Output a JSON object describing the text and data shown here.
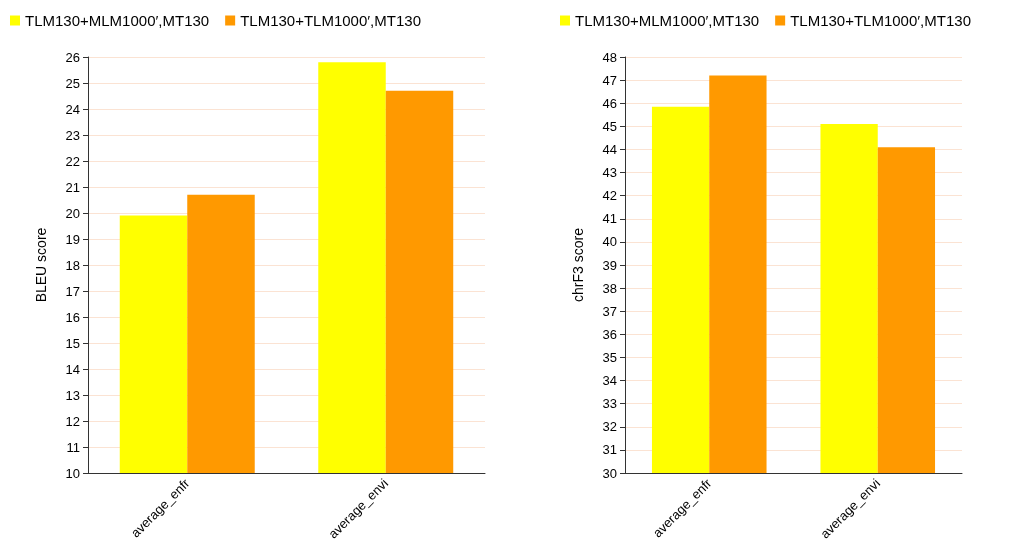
{
  "chart_data": [
    {
      "type": "bar",
      "ylabel": "BLEU score",
      "categories": [
        "average_enfr",
        "average_envi"
      ],
      "series": [
        {
          "name": "TLM130+MLM1000′,MT130",
          "color": "#ffff00",
          "values": [
            19.9,
            25.8
          ]
        },
        {
          "name": "TLM130+TLM1000′,MT130",
          "color": "#ff9900",
          "values": [
            20.7,
            24.7
          ]
        }
      ],
      "ylim": [
        10,
        26
      ],
      "yticks": [
        10,
        11,
        12,
        13,
        14,
        15,
        16,
        17,
        18,
        19,
        20,
        21,
        22,
        23,
        24,
        25,
        26
      ],
      "grid": "y",
      "legend": "top left"
    },
    {
      "type": "bar",
      "ylabel": "chrF3 score",
      "categories": [
        "average_enfr",
        "average_envi"
      ],
      "series": [
        {
          "name": "TLM130+MLM1000′,MT130",
          "color": "#ffff00",
          "values": [
            45.85,
            45.1
          ]
        },
        {
          "name": "TLM130+TLM1000′,MT130",
          "color": "#ff9900",
          "values": [
            47.2,
            44.1
          ]
        }
      ],
      "ylim": [
        30,
        48
      ],
      "yticks": [
        30,
        31,
        32,
        33,
        34,
        35,
        36,
        37,
        38,
        39,
        40,
        41,
        42,
        43,
        44,
        45,
        46,
        47,
        48
      ],
      "grid": "y",
      "legend": "top left"
    }
  ]
}
